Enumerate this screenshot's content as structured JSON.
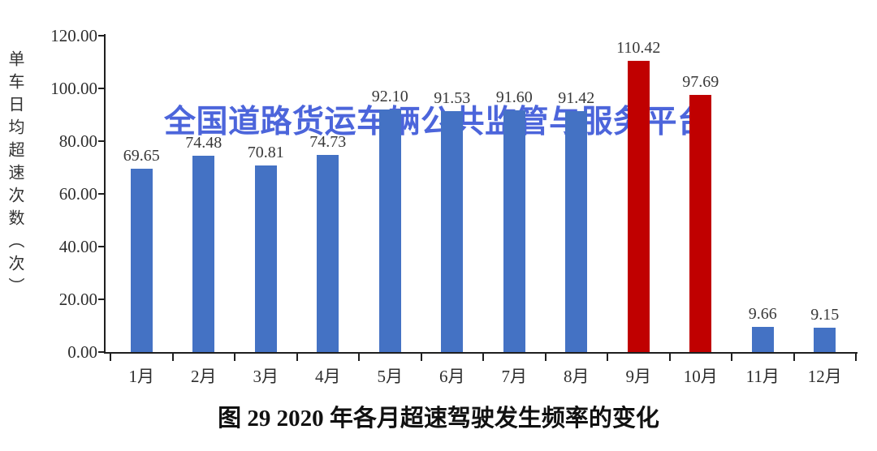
{
  "watermark": {
    "text": "全国道路货运车辆公共监管与服务平台",
    "color": "#3D58D8"
  },
  "caption": "图 29 2020 年各月超速驾驶发生频率的变化",
  "chart_data": {
    "type": "bar",
    "title": "图 29 2020 年各月超速驾驶发生频率的变化",
    "xlabel": "",
    "ylabel": "单车日均超速次数（次）",
    "ylim": [
      0,
      120
    ],
    "grid": false,
    "legend": "none",
    "categories": [
      "1月",
      "2月",
      "3月",
      "4月",
      "5月",
      "6月",
      "7月",
      "8月",
      "9月",
      "10月",
      "11月",
      "12月"
    ],
    "values": [
      69.65,
      74.48,
      70.81,
      74.73,
      92.1,
      91.53,
      91.6,
      91.42,
      110.42,
      97.69,
      9.66,
      9.15
    ],
    "value_labels": [
      "69.65",
      "74.48",
      "70.81",
      "74.73",
      "92.10",
      "91.53",
      "91.60",
      "91.42",
      "110.42",
      "97.69",
      "9.66",
      "9.15"
    ],
    "bar_colors": [
      "#4472C4",
      "#4472C4",
      "#4472C4",
      "#4472C4",
      "#4472C4",
      "#4472C4",
      "#4472C4",
      "#4472C4",
      "#C00000",
      "#C00000",
      "#4472C4",
      "#4472C4"
    ],
    "y_ticks": [
      {
        "value": 0,
        "label": "0.00"
      },
      {
        "value": 20,
        "label": "20.00"
      },
      {
        "value": 40,
        "label": "40.00"
      },
      {
        "value": 60,
        "label": "60.00"
      },
      {
        "value": 80,
        "label": "80.00"
      },
      {
        "value": 100,
        "label": "100.00"
      },
      {
        "value": 120,
        "label": "120.00"
      }
    ],
    "colors": {
      "series_blue": "#4472C4",
      "series_red": "#C00000",
      "axis": "#1F1F1F"
    }
  }
}
